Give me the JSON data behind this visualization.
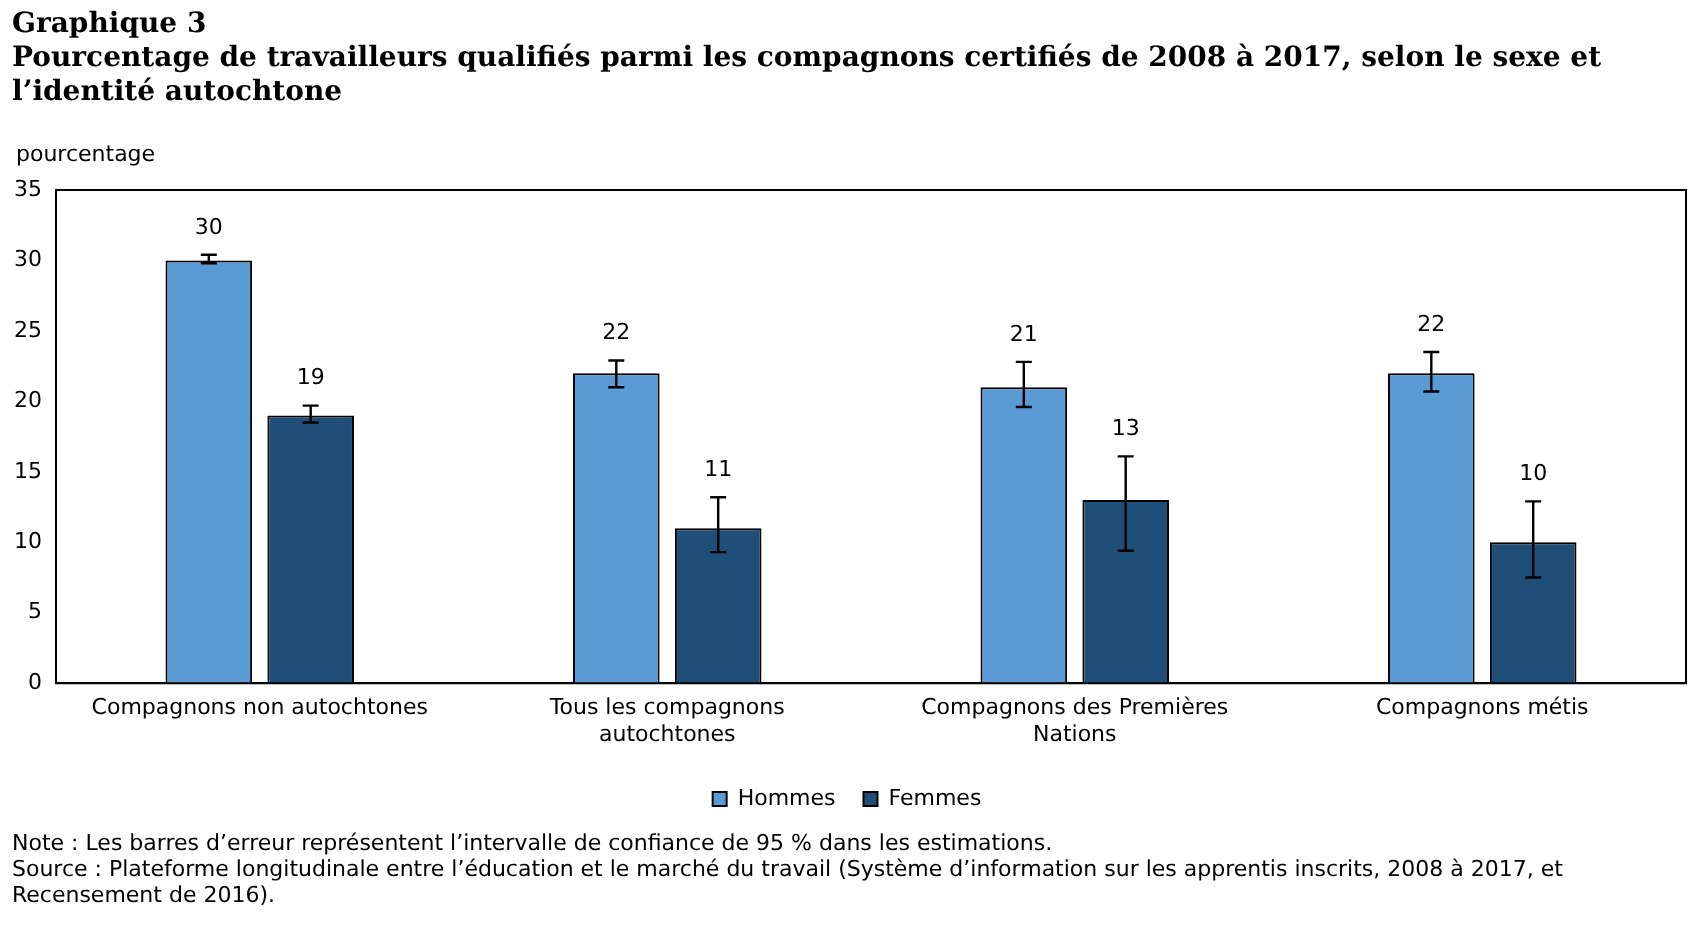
{
  "chart_data": {
    "type": "bar",
    "title": "Graphique 3",
    "subtitle": "Pourcentage de travailleurs qualifiés parmi les compagnons certifiés de 2008 à 2017, selon le sexe et l’identité autochtone",
    "ylabel": "pourcentage",
    "categories": [
      "Compagnons non autochtones",
      "Tous les compagnons autochtones",
      "Compagnons des Premières Nations",
      "Compagnons métis"
    ],
    "series": [
      {
        "name": "Hommes",
        "color": "#5b9bd5",
        "values": [
          30,
          22,
          21,
          22
        ],
        "errors": [
          [
            29.8,
            30.4
          ],
          [
            21.0,
            22.9
          ],
          [
            19.6,
            22.8
          ],
          [
            20.7,
            23.5
          ]
        ]
      },
      {
        "name": "Femmes",
        "color": "#1f4e79",
        "values": [
          19,
          11,
          13,
          10
        ],
        "errors": [
          [
            18.5,
            19.7
          ],
          [
            9.3,
            13.2
          ],
          [
            9.4,
            16.1
          ],
          [
            7.5,
            12.9
          ]
        ]
      }
    ],
    "ylim": [
      0,
      35
    ],
    "yticks": [
      0,
      5,
      10,
      15,
      20,
      25,
      30,
      35
    ],
    "grid": false,
    "legend": "bottom",
    "data_labels": true,
    "annotations": [
      "Note : Les barres d’erreur représentent l’intervalle de confiance de 95 % dans les estimations.",
      "Source : Plateforme longitudinale entre l’éducation et le marché du travail (Système d’information sur les apprentis inscrits, 2008 à 2017, et Recensement de 2016)."
    ]
  }
}
